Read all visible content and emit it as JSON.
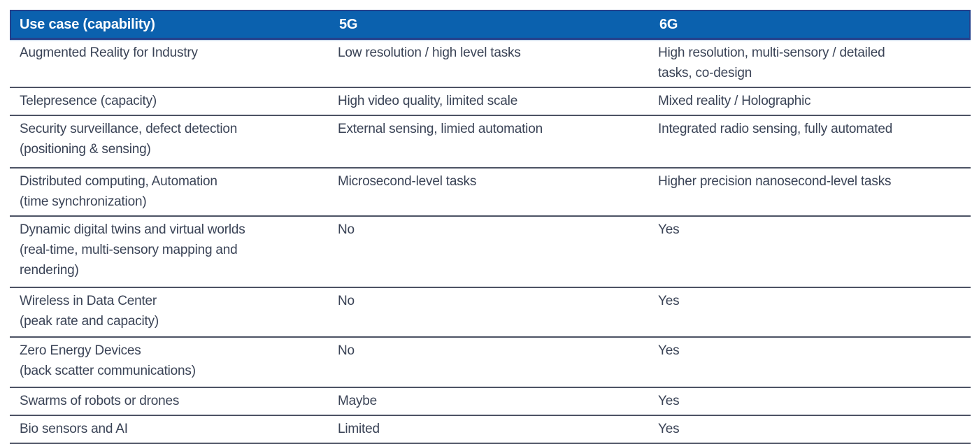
{
  "colors": {
    "header_bg": "#0b61ae",
    "header_border": "#24418c",
    "header_text": "#ffffff",
    "divider": "#4d5365",
    "body_text": "#3a4356"
  },
  "table": {
    "columns": [
      {
        "label": "Use case (capability)"
      },
      {
        "label": "5G"
      },
      {
        "label": "6G"
      }
    ],
    "rows": [
      {
        "use_case": "Augmented Reality for Industry",
        "g5": "Low resolution / high level tasks",
        "g6": "High resolution, multi-sensory / detailed\ntasks, co-design"
      },
      {
        "use_case": "Telepresence (capacity)",
        "g5": "High video quality, limited scale",
        "g6": "Mixed reality / Holographic"
      },
      {
        "use_case": "Security surveillance, defect detection\n(positioning & sensing)",
        "g5": "External sensing, limied automation",
        "g6": "Integrated radio sensing, fully automated"
      },
      {
        "use_case": "Distributed computing, Automation\n(time synchronization)",
        "g5": "Microsecond-level tasks",
        "g6": "Higher precision nanosecond-level tasks"
      },
      {
        "use_case": "Dynamic digital twins and virtual worlds\n(real-time, multi-sensory mapping and\nrendering)",
        "g5": "No",
        "g6": "Yes"
      },
      {
        "use_case": "Wireless in Data Center\n(peak rate and capacity)",
        "g5": "No",
        "g6": "Yes"
      },
      {
        "use_case": "Zero Energy Devices\n(back scatter communications)",
        "g5": "No",
        "g6": "Yes"
      },
      {
        "use_case": "Swarms of robots or drones",
        "g5": "Maybe",
        "g6": "Yes"
      },
      {
        "use_case": "Bio sensors and AI",
        "g5": "Limited",
        "g6": "Yes"
      }
    ]
  }
}
